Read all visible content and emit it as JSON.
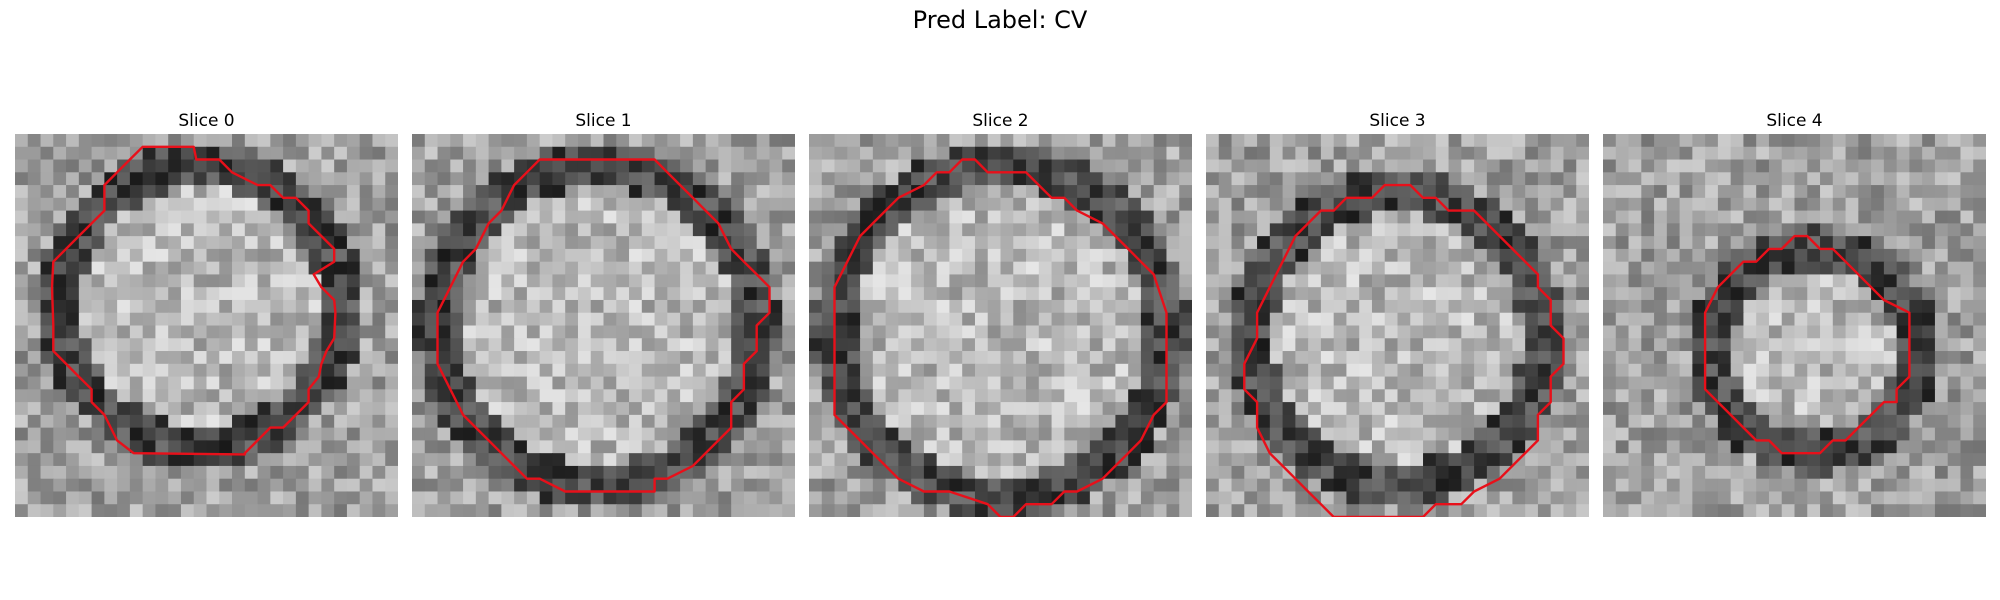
{
  "figure": {
    "title": "Pred Label: CV",
    "colors": {
      "contour": "#e8101a",
      "background": "#ffffff"
    },
    "grid_size": 30,
    "slices": [
      {
        "title": "Slice 0",
        "image_description": "grayscale noisy tile; bright blob left-center, dark shadow lower-left",
        "blob": {
          "cx": 14.5,
          "cy": 13.5,
          "r": 10.5
        },
        "contour": [
          [
            13,
            1
          ],
          [
            14,
            1
          ],
          [
            14.2,
            2
          ],
          [
            16,
            2
          ],
          [
            17,
            3
          ],
          [
            19,
            4
          ],
          [
            20,
            4
          ],
          [
            21,
            5
          ],
          [
            22,
            5
          ],
          [
            23,
            6
          ],
          [
            23,
            7
          ],
          [
            24,
            8
          ],
          [
            25,
            9
          ],
          [
            25,
            10
          ],
          [
            23.4,
            11
          ],
          [
            24,
            12
          ],
          [
            25,
            13
          ],
          [
            25.1,
            14
          ],
          [
            25,
            16
          ],
          [
            24.4,
            17
          ],
          [
            24,
            18
          ],
          [
            23.8,
            19
          ],
          [
            23,
            20
          ],
          [
            23,
            21
          ],
          [
            21,
            23
          ],
          [
            20,
            23
          ],
          [
            19,
            24
          ],
          [
            18,
            25
          ],
          [
            18,
            25.1
          ],
          [
            9.3,
            25
          ],
          [
            8,
            24
          ],
          [
            7,
            22
          ],
          [
            6,
            21
          ],
          [
            6,
            20
          ],
          [
            5,
            19
          ],
          [
            3,
            17
          ],
          [
            3,
            15
          ],
          [
            2.9,
            12
          ],
          [
            3,
            10
          ],
          [
            5,
            8
          ],
          [
            6,
            7
          ],
          [
            7,
            6
          ],
          [
            7,
            4
          ],
          [
            8,
            3
          ],
          [
            9,
            2
          ],
          [
            10,
            1
          ],
          [
            11,
            1
          ]
        ]
      },
      {
        "title": "Slice 1",
        "image_description": "grayscale noisy tile; large round bright region, dark patches right and bottom",
        "blob": {
          "cx": 14.5,
          "cy": 15,
          "r": 12
        },
        "contour": [
          [
            10,
            2
          ],
          [
            19,
            2
          ],
          [
            20,
            3
          ],
          [
            21,
            4
          ],
          [
            22,
            5
          ],
          [
            23,
            6
          ],
          [
            24,
            7
          ],
          [
            25,
            9
          ],
          [
            26,
            10
          ],
          [
            27,
            11
          ],
          [
            28,
            12
          ],
          [
            28,
            14
          ],
          [
            27,
            15
          ],
          [
            27,
            17
          ],
          [
            26,
            18
          ],
          [
            26,
            20
          ],
          [
            25,
            21
          ],
          [
            25,
            23
          ],
          [
            24,
            24
          ],
          [
            23,
            25
          ],
          [
            22,
            26
          ],
          [
            20,
            27
          ],
          [
            19,
            27
          ],
          [
            19,
            28
          ],
          [
            12,
            28
          ],
          [
            10,
            27
          ],
          [
            9,
            27
          ],
          [
            8,
            26
          ],
          [
            7,
            25
          ],
          [
            6,
            24
          ],
          [
            4,
            22
          ],
          [
            3,
            20
          ],
          [
            2,
            18
          ],
          [
            2,
            14
          ],
          [
            3,
            12
          ],
          [
            4,
            10
          ],
          [
            5,
            9
          ],
          [
            6,
            7
          ],
          [
            7,
            6
          ],
          [
            8,
            4
          ],
          [
            9,
            3
          ]
        ]
      },
      {
        "title": "Slice 2",
        "image_description": "grayscale noisy tile; large round textured region, dark border at edges",
        "blob": {
          "cx": 15,
          "cy": 15.5,
          "r": 12.5
        },
        "contour": [
          [
            12,
            2
          ],
          [
            13,
            2
          ],
          [
            14,
            3
          ],
          [
            17,
            3
          ],
          [
            18,
            4
          ],
          [
            19,
            5
          ],
          [
            20,
            5
          ],
          [
            21,
            6
          ],
          [
            23,
            7
          ],
          [
            24,
            8
          ],
          [
            25,
            9
          ],
          [
            26,
            10
          ],
          [
            27,
            11
          ],
          [
            28,
            14
          ],
          [
            28,
            21
          ],
          [
            27,
            22
          ],
          [
            26,
            24
          ],
          [
            25,
            25
          ],
          [
            24,
            26
          ],
          [
            23,
            27
          ],
          [
            21,
            28
          ],
          [
            20,
            28
          ],
          [
            19,
            29
          ],
          [
            17,
            29
          ],
          [
            16,
            30
          ],
          [
            15,
            30
          ],
          [
            14,
            29
          ],
          [
            11,
            28
          ],
          [
            9,
            28
          ],
          [
            7,
            27
          ],
          [
            6,
            26
          ],
          [
            5,
            25
          ],
          [
            4,
            24
          ],
          [
            3,
            23
          ],
          [
            2,
            22
          ],
          [
            2,
            15
          ],
          [
            2,
            12
          ],
          [
            3,
            10
          ],
          [
            4,
            8
          ],
          [
            5,
            7
          ],
          [
            6,
            6
          ],
          [
            7,
            5
          ],
          [
            9,
            4
          ],
          [
            10,
            3
          ],
          [
            11,
            3
          ]
        ]
      },
      {
        "title": "Slice 3",
        "image_description": "grayscale noisy tile; round bright region with dark outline ring",
        "blob": {
          "cx": 15,
          "cy": 16,
          "r": 11
        },
        "contour": [
          [
            11,
            5
          ],
          [
            13,
            5
          ],
          [
            14,
            4
          ],
          [
            16,
            4
          ],
          [
            17,
            5
          ],
          [
            18,
            5
          ],
          [
            19,
            6
          ],
          [
            21,
            6
          ],
          [
            22,
            7
          ],
          [
            23,
            8
          ],
          [
            24,
            9
          ],
          [
            25,
            10
          ],
          [
            26,
            11
          ],
          [
            26,
            12
          ],
          [
            27,
            13
          ],
          [
            27,
            15
          ],
          [
            28,
            16
          ],
          [
            28,
            18
          ],
          [
            27,
            19
          ],
          [
            27,
            21
          ],
          [
            26,
            22
          ],
          [
            26,
            24
          ],
          [
            24,
            26
          ],
          [
            23,
            27
          ],
          [
            21,
            28
          ],
          [
            20,
            29
          ],
          [
            18,
            29
          ],
          [
            17,
            30
          ],
          [
            13,
            30
          ],
          [
            10,
            30
          ],
          [
            9,
            29
          ],
          [
            8,
            28
          ],
          [
            7,
            27
          ],
          [
            6,
            26
          ],
          [
            5,
            25
          ],
          [
            4,
            23
          ],
          [
            4,
            21
          ],
          [
            3,
            20
          ],
          [
            3,
            18
          ],
          [
            4,
            16
          ],
          [
            4,
            14
          ],
          [
            5,
            12
          ],
          [
            6,
            10
          ],
          [
            7,
            8
          ],
          [
            8,
            7
          ],
          [
            9,
            6
          ],
          [
            10,
            6
          ]
        ]
      },
      {
        "title": "Slice 4",
        "image_description": "grayscale noisy tile; smaller bright region with dark ring, bright surroundings",
        "blob": {
          "cx": 16.5,
          "cy": 17,
          "r": 7.5
        },
        "contour": [
          [
            13,
            9
          ],
          [
            14,
            9
          ],
          [
            15,
            8
          ],
          [
            16,
            8
          ],
          [
            17,
            9
          ],
          [
            18,
            9
          ],
          [
            19,
            10
          ],
          [
            20,
            11
          ],
          [
            21,
            12
          ],
          [
            22,
            13
          ],
          [
            24,
            14
          ],
          [
            24,
            19
          ],
          [
            23,
            20
          ],
          [
            23,
            21
          ],
          [
            22,
            21
          ],
          [
            21,
            22
          ],
          [
            20,
            23
          ],
          [
            19,
            24
          ],
          [
            18,
            24
          ],
          [
            17,
            25
          ],
          [
            14,
            25
          ],
          [
            13,
            24
          ],
          [
            12,
            24
          ],
          [
            11,
            23
          ],
          [
            10,
            22
          ],
          [
            9,
            21
          ],
          [
            8,
            20
          ],
          [
            8,
            14
          ],
          [
            9,
            12
          ],
          [
            10,
            11
          ],
          [
            11,
            10
          ],
          [
            12,
            10
          ]
        ]
      }
    ]
  }
}
